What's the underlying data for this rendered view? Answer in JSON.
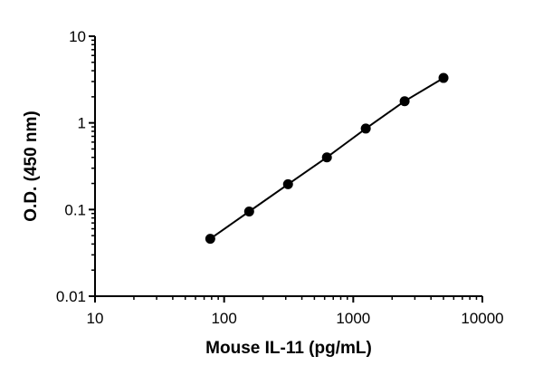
{
  "chart_data": {
    "type": "scatter",
    "xlabel": "Mouse  IL-11 (pg/mL)",
    "ylabel": "O.D. (450 nm)",
    "xscale": "log",
    "yscale": "log",
    "xlim": [
      10,
      10000
    ],
    "ylim": [
      0.01,
      10
    ],
    "xticks": [
      "10",
      "100",
      "1000",
      "10000"
    ],
    "yticks": [
      "0.01",
      "0.1",
      "1",
      "10"
    ],
    "series": [
      {
        "x": [
          78.1,
          156.25,
          312.5,
          625,
          1250,
          2500,
          5000
        ],
        "y": [
          0.046,
          0.095,
          0.196,
          0.4,
          0.86,
          1.78,
          3.3
        ],
        "marker": "circle",
        "line": "fit"
      }
    ],
    "grid": false,
    "legend": "none",
    "colors": {
      "series": "#000000",
      "axis": "#000000"
    }
  }
}
